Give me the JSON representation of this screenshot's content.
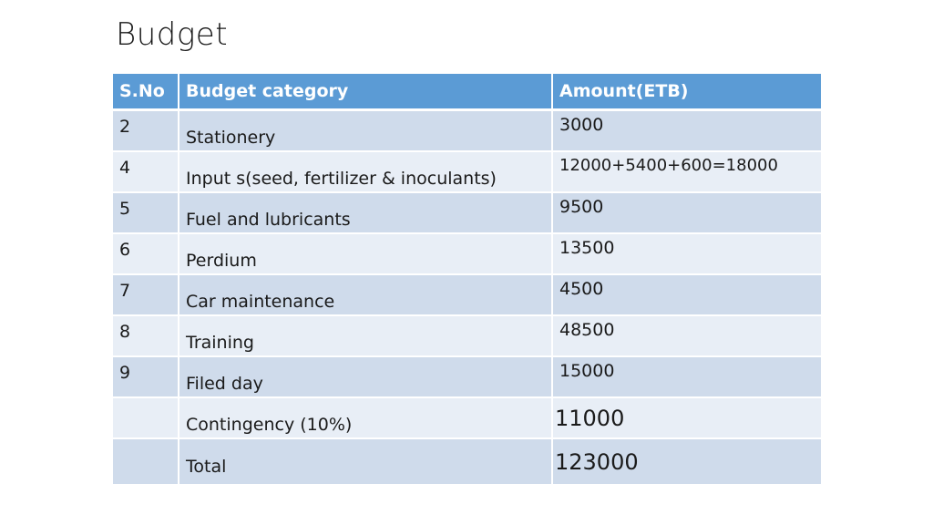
{
  "slide": {
    "title": "Budget"
  },
  "table": {
    "headers": {
      "sno": "S.No",
      "category": "Budget category",
      "amount": "Amount(ETB)"
    },
    "rows": [
      {
        "sno": "2",
        "category": "Stationery",
        "amount": "3000"
      },
      {
        "sno": "4",
        "category": "Input s(seed, fertilizer & inoculants)",
        "amount": "12000+5400+600=18000"
      },
      {
        "sno": "5",
        "category": "Fuel and lubricants",
        "amount": "9500"
      },
      {
        "sno": "6",
        "category": "Perdium",
        "amount": "13500"
      },
      {
        "sno": "7",
        "category": "Car maintenance",
        "amount": "4500"
      },
      {
        "sno": "8",
        "category": "Training",
        "amount": "48500"
      },
      {
        "sno": "9",
        "category": "Filed day",
        "amount": "15000"
      },
      {
        "sno": "",
        "category": "Contingency (10%)",
        "amount": "11000"
      },
      {
        "sno": "",
        "category": "Total",
        "amount": "123000"
      }
    ]
  },
  "colors": {
    "header_bg": "#5b9bd5",
    "row_dark": "#cfdbeb",
    "row_light": "#e8eef6"
  }
}
